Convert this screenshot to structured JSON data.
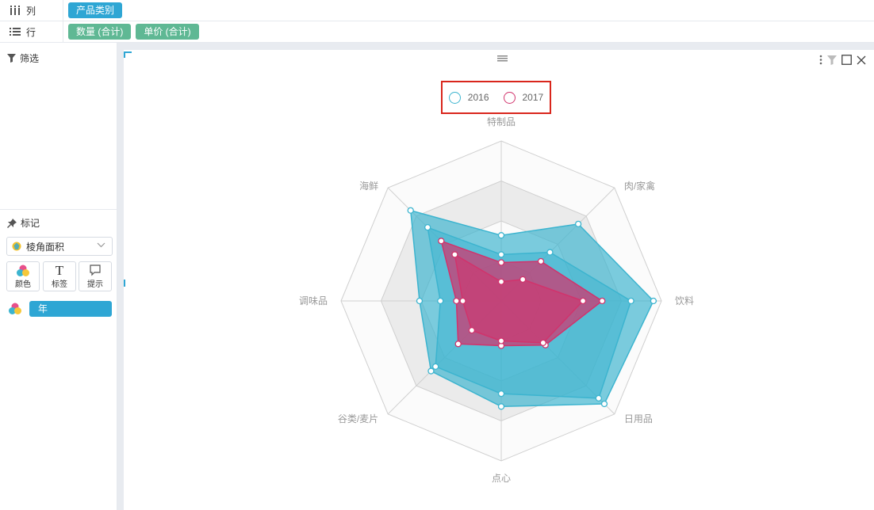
{
  "shelves": {
    "columns": {
      "label": "列",
      "pills": [
        "产品类别"
      ]
    },
    "rows": {
      "label": "行",
      "pills": [
        "数量 (合计)",
        "单价 (合计)"
      ]
    }
  },
  "panel": {
    "filter_title": "筛选",
    "marks_title": "标记",
    "mark_type": "棱角面积",
    "buttons": {
      "color": "颜色",
      "label": "标签",
      "tooltip": "提示"
    },
    "color_field": "年"
  },
  "colors": {
    "accent": "#2ea6d4",
    "green": "#5fb894",
    "s2016": "#3cb4cf",
    "s2017": "#d1336c"
  },
  "icons": [
    "columns-icon",
    "rows-icon",
    "filter-icon",
    "pin-icon",
    "chevron-down-icon",
    "color-icon",
    "text-icon",
    "tooltip-icon",
    "more-icon",
    "funnel-icon",
    "maximize-icon",
    "close-icon",
    "drag-handle-icon"
  ],
  "chart_data": {
    "type": "radar",
    "categories": [
      "特制品",
      "肉/家禽",
      "饮料",
      "日用品",
      "点心",
      "谷类/麦片",
      "调味品",
      "海鲜"
    ],
    "rlim": [
      0,
      1
    ],
    "ring_levels": 4,
    "legend": {
      "placement": "top-center",
      "items": [
        "2016",
        "2017"
      ]
    },
    "series": [
      {
        "name": "2016",
        "role": "outer",
        "values": [
          0.41,
          0.68,
          0.95,
          0.91,
          0.66,
          0.62,
          0.51,
          0.8
        ]
      },
      {
        "name": "2016",
        "role": "inner",
        "values": [
          0.29,
          0.43,
          0.81,
          0.86,
          0.58,
          0.58,
          0.38,
          0.65
        ]
      },
      {
        "name": "2017",
        "role": "outer",
        "values": [
          0.24,
          0.35,
          0.63,
          0.39,
          0.28,
          0.38,
          0.28,
          0.53
        ]
      },
      {
        "name": "2017",
        "role": "inner",
        "values": [
          0.12,
          0.19,
          0.51,
          0.37,
          0.25,
          0.26,
          0.24,
          0.41
        ]
      }
    ]
  }
}
